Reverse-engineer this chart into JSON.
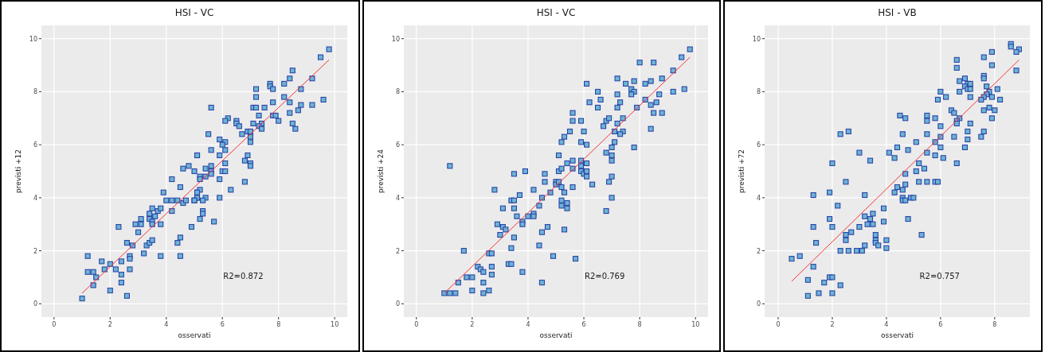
{
  "chart_data": [
    {
      "type": "scatter",
      "title": "HSI - VC",
      "xlabel": "osservati",
      "ylabel": "previsti +12",
      "xlim": [
        -0.45,
        10.45
      ],
      "ylim": [
        -0.5,
        10.5
      ],
      "xticks": [
        0,
        2,
        4,
        6,
        8,
        10
      ],
      "yticks": [
        0,
        2,
        4,
        6,
        8,
        10
      ],
      "grid": true,
      "annotations": [
        "R2=0.872"
      ],
      "series": [
        {
          "marker": "square",
          "color": "#6cb4d4",
          "x": [
            1.0,
            1.2,
            1.2,
            1.4,
            1.4,
            1.5,
            1.7,
            1.8,
            2.0,
            2.0,
            2.2,
            2.3,
            2.4,
            2.4,
            2.4,
            2.6,
            2.6,
            2.7,
            2.7,
            2.7,
            2.8,
            2.9,
            3.0,
            3.1,
            3.1,
            3.2,
            3.3,
            3.4,
            3.4,
            3.4,
            3.5,
            3.5,
            3.5,
            3.5,
            3.6,
            3.7,
            3.8,
            3.8,
            3.8,
            3.9,
            4.0,
            4.2,
            4.2,
            4.2,
            4.4,
            4.4,
            4.5,
            4.5,
            4.5,
            4.6,
            4.6,
            4.7,
            4.8,
            4.9,
            5.0,
            5.0,
            5.1,
            5.1,
            5.1,
            9.8,
            9.5,
            8.5,
            8.4,
            9.2,
            7.7,
            7.7,
            8.2,
            7.2,
            7.8,
            8.8,
            7.2,
            8.2,
            8.4,
            7.8,
            5.6,
            7.1,
            7.2,
            7.5,
            8.8,
            9.2,
            9.6,
            8.7,
            8.4,
            7.3,
            7.8,
            7.9,
            8.0,
            6.2,
            6.1,
            6.5,
            6.5,
            6.6,
            7.1,
            7.4,
            7.3,
            7.4,
            8.5,
            8.6,
            6.7,
            6.9,
            7.0,
            7.0,
            7.0,
            5.5,
            5.9,
            6.1,
            6.0,
            6.1,
            5.6,
            5.1,
            5.9,
            6.9,
            6.8,
            7.0,
            7.0,
            6.1,
            6.0,
            6.1,
            5.4,
            5.6,
            5.6,
            5.6,
            5.2,
            5.2,
            5.4,
            5.9,
            6.8,
            5.2,
            6.3,
            5.1,
            5.1,
            5.4,
            5.9,
            5.0,
            5.3,
            5.3,
            5.3,
            5.2,
            5.7
          ],
          "values": [
            0.2,
            1.8,
            1.2,
            1.2,
            0.7,
            1.0,
            1.6,
            1.3,
            1.5,
            0.5,
            1.3,
            2.9,
            1.6,
            1.1,
            0.8,
            2.3,
            0.3,
            1.8,
            1.7,
            1.3,
            2.2,
            3.0,
            2.7,
            3.2,
            3.0,
            1.9,
            2.2,
            3.4,
            3.2,
            2.3,
            3.6,
            3.1,
            3.0,
            2.4,
            3.3,
            3.5,
            3.6,
            3.0,
            1.8,
            4.2,
            3.9,
            4.7,
            3.9,
            3.5,
            3.9,
            2.3,
            4.4,
            2.5,
            1.8,
            5.1,
            3.8,
            3.9,
            5.2,
            2.9,
            5.0,
            3.9,
            5.6,
            4.2,
            4.0,
            9.6,
            9.3,
            8.8,
            8.5,
            8.5,
            8.3,
            8.2,
            8.3,
            8.1,
            8.1,
            8.1,
            7.8,
            7.8,
            7.6,
            7.6,
            7.4,
            7.4,
            7.4,
            7.4,
            7.5,
            7.5,
            7.7,
            7.3,
            7.2,
            7.1,
            7.1,
            7.1,
            6.9,
            7.0,
            6.9,
            6.9,
            6.8,
            6.7,
            6.8,
            6.8,
            6.7,
            6.6,
            6.8,
            6.6,
            6.4,
            6.5,
            6.5,
            6.3,
            6.1,
            6.4,
            6.2,
            6.1,
            6.0,
            5.8,
            5.8,
            5.6,
            5.6,
            5.6,
            5.4,
            5.3,
            5.2,
            5.3,
            5.0,
            5.0,
            5.1,
            5.2,
            5.0,
            4.9,
            4.8,
            4.7,
            4.8,
            4.7,
            4.6,
            4.3,
            4.3,
            4.2,
            4.0,
            4.0,
            4.0,
            3.9,
            3.9,
            3.5,
            3.4,
            3.2,
            3.1
          ]
        },
        {
          "type": "line",
          "marker": "none",
          "color": "#f5363a",
          "x": [
            1.0,
            9.8
          ],
          "values": [
            0.4,
            9.2
          ]
        }
      ]
    },
    {
      "type": "scatter",
      "title": "HSI - VC",
      "xlabel": "osservati",
      "ylabel": "previsti +24",
      "xlim": [
        -0.45,
        10.45
      ],
      "ylim": [
        -0.5,
        10.5
      ],
      "xticks": [
        0,
        2,
        4,
        6,
        8,
        10
      ],
      "yticks": [
        0,
        2,
        4,
        6,
        8,
        10
      ],
      "grid": true,
      "annotations": [
        "R2=0.769"
      ],
      "series": [
        {
          "marker": "square",
          "color": "#6cb4d4",
          "x": [
            1.0,
            1.2,
            1.4,
            1.2,
            1.5,
            1.7,
            1.8,
            2.0,
            2.0,
            2.2,
            2.3,
            2.4,
            2.4,
            2.4,
            2.6,
            2.7,
            2.7,
            2.7,
            2.6,
            2.8,
            2.9,
            3.0,
            3.1,
            3.1,
            3.2,
            3.3,
            3.4,
            3.4,
            3.4,
            3.5,
            3.5,
            3.5,
            3.5,
            3.6,
            3.7,
            3.8,
            3.8,
            3.8,
            3.9,
            4.0,
            4.2,
            4.2,
            4.2,
            4.4,
            4.4,
            4.5,
            4.5,
            4.5,
            4.6,
            4.6,
            4.7,
            4.8,
            4.9,
            5.0,
            5.0,
            5.1,
            5.1,
            5.1,
            5.2,
            5.2,
            5.2,
            5.2,
            5.2,
            9.8,
            9.5,
            8.0,
            8.5,
            9.2,
            7.2,
            8.8,
            6.1,
            7.5,
            7.8,
            8.2,
            8.4,
            7.7,
            7.8,
            6.5,
            7.2,
            7.7,
            8.7,
            9.2,
            9.6,
            6.6,
            6.2,
            7.3,
            8.2,
            8.6,
            6.5,
            7.2,
            7.9,
            8.4,
            5.6,
            8.5,
            8.8,
            5.6,
            5.9,
            6.8,
            6.9,
            7.4,
            7.2,
            6.7,
            5.5,
            6.0,
            7.1,
            7.4,
            7.3,
            8.4,
            5.3,
            5.9,
            6.1,
            7.1,
            7.0,
            7.8,
            6.8,
            7.0,
            5.4,
            5.6,
            5.9,
            6.1,
            7.0,
            5.9,
            5.9,
            5.6,
            6.0,
            6.1,
            6.1,
            7.0,
            6.9,
            6.3,
            5.6,
            5.3,
            5.4,
            5.4,
            7.0,
            6.8,
            5.3,
            5.7
          ],
          "values": [
            0.4,
            0.4,
            0.4,
            5.2,
            0.8,
            2.0,
            1.0,
            1.0,
            0.5,
            1.4,
            1.3,
            1.2,
            0.8,
            0.4,
            1.9,
            1.9,
            1.4,
            1.1,
            0.5,
            4.3,
            3.0,
            2.6,
            3.6,
            2.9,
            2.8,
            1.5,
            1.5,
            2.1,
            3.9,
            3.9,
            4.9,
            3.6,
            2.5,
            3.3,
            4.1,
            3.1,
            3.0,
            1.2,
            5.0,
            3.3,
            4.3,
            3.4,
            3.3,
            3.7,
            2.2,
            4.0,
            2.7,
            0.8,
            4.9,
            4.6,
            2.9,
            4.2,
            1.8,
            4.6,
            4.5,
            4.6,
            5.6,
            5.0,
            6.1,
            5.1,
            4.4,
            3.9,
            3.7,
            9.6,
            9.3,
            9.1,
            9.1,
            8.8,
            8.5,
            8.5,
            8.3,
            8.3,
            8.4,
            8.3,
            8.4,
            8.1,
            8.0,
            8.0,
            7.9,
            7.9,
            7.9,
            8.0,
            8.1,
            7.7,
            7.6,
            7.6,
            7.7,
            7.6,
            7.4,
            7.4,
            7.4,
            7.5,
            7.2,
            7.2,
            7.2,
            6.9,
            6.9,
            6.9,
            7.0,
            7.0,
            6.8,
            6.7,
            6.5,
            6.5,
            6.5,
            6.5,
            6.4,
            6.6,
            6.3,
            6.1,
            6.0,
            6.1,
            5.9,
            5.9,
            5.7,
            5.6,
            5.3,
            5.4,
            5.4,
            5.3,
            5.4,
            5.2,
            5.0,
            5.1,
            4.9,
            5.0,
            4.8,
            4.8,
            4.6,
            4.5,
            4.4,
            4.2,
            3.8,
            3.6,
            4.0,
            3.5,
            2.8,
            1.7
          ]
        },
        {
          "type": "line",
          "marker": "none",
          "color": "#f5363a",
          "x": [
            1.0,
            9.8
          ],
          "values": [
            0.4,
            9.3
          ]
        }
      ]
    },
    {
      "type": "scatter",
      "title": "HSI - VB",
      "xlabel": "osservati",
      "ylabel": "previsti +72",
      "xlim": [
        -0.5,
        9.3
      ],
      "ylim": [
        -0.5,
        10.5
      ],
      "xticks": [
        0,
        2,
        4,
        6,
        8
      ],
      "yticks": [
        0,
        2,
        4,
        6,
        8,
        10
      ],
      "grid": true,
      "annotations": [
        "R2=0.757"
      ],
      "series": [
        {
          "marker": "square",
          "color": "#6cb4d4",
          "x": [
            0.5,
            0.8,
            1.1,
            1.1,
            1.3,
            1.3,
            1.3,
            1.4,
            1.5,
            1.7,
            1.9,
            1.9,
            1.9,
            2.0,
            2.0,
            2.0,
            2.0,
            2.2,
            2.3,
            2.3,
            2.3,
            2.5,
            2.5,
            2.5,
            2.6,
            2.6,
            2.7,
            2.9,
            3.0,
            3.0,
            3.1,
            3.2,
            3.2,
            3.2,
            3.3,
            3.4,
            3.4,
            3.5,
            3.5,
            3.6,
            3.6,
            3.6,
            3.7,
            3.9,
            3.9,
            4.0,
            4.0,
            4.1,
            4.3,
            4.3,
            4.4,
            4.4,
            4.5,
            4.6,
            4.6,
            4.6,
            4.6,
            8.6,
            8.6,
            8.9,
            8.8,
            7.9,
            7.6,
            6.6,
            6.6,
            7.9,
            8.8,
            7.6,
            7.6,
            6.9,
            6.7,
            7.0,
            7.1,
            6.9,
            7.7,
            7.0,
            7.1,
            8.1,
            6.0,
            6.7,
            7.8,
            7.7,
            6.2,
            7.1,
            7.6,
            7.9,
            5.9,
            7.5,
            8.2,
            7.8,
            6.4,
            6.5,
            7.6,
            8.0,
            4.7,
            5.5,
            5.5,
            5.8,
            6.7,
            7.9,
            6.6,
            6.6,
            7.1,
            6.0,
            7.0,
            7.6,
            5.5,
            6.0,
            6.5,
            7.5,
            7.0,
            5.1,
            5.8,
            6.0,
            6.9,
            4.8,
            5.5,
            5.8,
            6.1,
            5.2,
            6.6,
            5.4,
            5.1,
            4.7,
            5.2,
            5.5,
            5.8,
            5.9,
            4.7,
            4.7,
            4.9,
            5.0,
            4.8,
            5.3
          ],
          "values": [
            1.7,
            1.8,
            0.9,
            0.3,
            4.1,
            2.9,
            1.4,
            2.3,
            0.4,
            0.8,
            4.2,
            3.2,
            1.0,
            5.3,
            2.9,
            1.0,
            0.4,
            3.7,
            6.4,
            2.0,
            0.7,
            4.6,
            2.6,
            2.4,
            6.5,
            2.0,
            2.7,
            2.0,
            5.7,
            2.9,
            2.0,
            4.1,
            3.3,
            2.2,
            3.0,
            5.4,
            3.2,
            3.4,
            3.0,
            2.6,
            2.4,
            2.3,
            2.2,
            3.6,
            3.1,
            2.4,
            2.1,
            5.7,
            5.5,
            4.2,
            5.9,
            4.4,
            7.1,
            6.4,
            4.3,
            4.0,
            3.9,
            9.8,
            9.7,
            9.6,
            9.5,
            9.5,
            9.3,
            9.2,
            8.9,
            9.0,
            8.8,
            8.6,
            8.5,
            8.5,
            8.4,
            8.3,
            8.3,
            8.2,
            8.2,
            8.1,
            8.1,
            8.1,
            8.0,
            8.0,
            8.0,
            7.9,
            7.8,
            7.8,
            7.8,
            7.8,
            7.7,
            7.7,
            7.7,
            7.4,
            7.3,
            7.2,
            7.3,
            7.3,
            7.0,
            7.1,
            6.9,
            7.0,
            7.0,
            7.0,
            6.9,
            6.8,
            6.8,
            6.7,
            6.5,
            6.5,
            6.4,
            6.3,
            6.3,
            6.3,
            6.2,
            6.1,
            6.1,
            5.9,
            5.9,
            5.8,
            5.7,
            5.6,
            5.5,
            5.3,
            5.3,
            5.1,
            5.0,
            4.9,
            4.6,
            4.6,
            4.6,
            4.6,
            4.5,
            3.9,
            4.0,
            4.0,
            3.2,
            2.6
          ]
        },
        {
          "type": "line",
          "marker": "none",
          "color": "#f5363a",
          "x": [
            0.5,
            8.9
          ],
          "values": [
            0.85,
            9.2
          ]
        }
      ]
    }
  ]
}
